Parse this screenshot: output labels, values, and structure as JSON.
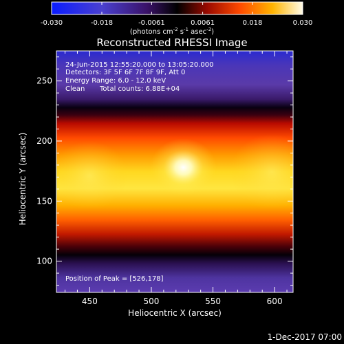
{
  "colorbar": {
    "tick_labels": [
      "-0.030",
      "-0.018",
      "-0.0061",
      "0.0061",
      "0.018",
      "0.030"
    ],
    "tick_values": [
      -0.03,
      -0.018,
      -0.0061,
      0.0061,
      0.018,
      0.03
    ],
    "range": [
      -0.03,
      0.03
    ],
    "units_prefix": "(photons cm",
    "units_exp1": "-2",
    "units_mid": " s",
    "units_exp2": "-1",
    "units_mid2": " asec",
    "units_exp3": "-2",
    "units_suffix": ")"
  },
  "chart_data": {
    "type": "heatmap",
    "title": "Reconstructed RHESSI Image",
    "xlabel": "Heliocentric X (arcsec)",
    "ylabel": "Heliocentric Y (arcsec)",
    "xlim": [
      423,
      615
    ],
    "ylim": [
      74,
      275
    ],
    "x_ticks": [
      450,
      500,
      550,
      600
    ],
    "y_ticks": [
      100,
      150,
      200,
      250
    ],
    "x_tick_labels": [
      "450",
      "500",
      "550",
      "600"
    ],
    "y_tick_labels": [
      "100",
      "150",
      "200",
      "250"
    ],
    "peak": [
      526,
      178
    ],
    "colors": [
      "#0000ff",
      "#5a3aa8",
      "#2a0a40",
      "#000000",
      "#8a0000",
      "#ff3000",
      "#ff9a00",
      "#ffee40",
      "#ffffff"
    ]
  },
  "annotations": {
    "time_range": "24-Jun-2015 12:55:20.000 to 13:05:20.000",
    "detectors": "Detectors: 3F 5F 6F 7F 8F 9F, Att 0",
    "energy": "Energy Range: 6.0 - 12.0 keV",
    "method": "Clean",
    "total_counts": "Total counts: 6.88E+04",
    "peak_position": "Position of Peak = [526,178]"
  },
  "footer": {
    "date": "1-Dec-2017 07:00"
  }
}
